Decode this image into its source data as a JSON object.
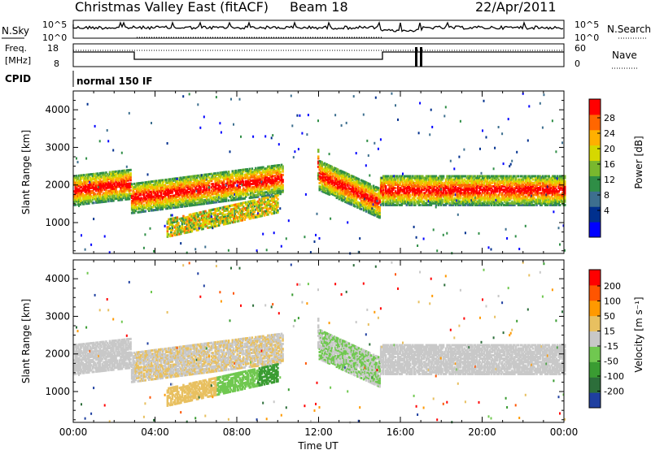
{
  "header": {
    "station": "Christmas Valley East (fitACF)",
    "beam": "Beam 18",
    "date": "22/Apr/2011"
  },
  "nsky_panel": {
    "left_label": "N.Sky",
    "left_ticks": [
      "10^5",
      "10^0"
    ],
    "right_label": "N.Search",
    "right_ticks": [
      "10^5",
      "10^0"
    ]
  },
  "freq_panel": {
    "label_line1": "Freq.",
    "label_line2": "[MHz]",
    "left_ticks": [
      "18",
      "8"
    ],
    "right_label": "Nave",
    "right_ticks": [
      "60",
      "0"
    ]
  },
  "cpid": {
    "label": "CPID",
    "mode": "normal 150 IF"
  },
  "chart_data": [
    {
      "type": "heatmap",
      "title": "",
      "xlabel": "",
      "ylabel": "Slant Range [km]",
      "xlim": [
        0,
        24
      ],
      "ylim": [
        180,
        4500
      ],
      "x_tick_labels": [
        "00:00",
        "04:00",
        "08:00",
        "12:00",
        "16:00",
        "20:00",
        "00:00"
      ],
      "y_ticks": [
        1000,
        2000,
        3000,
        4000
      ],
      "colorbar": {
        "label": "Power [dB]",
        "ticks": [
          "28",
          "24",
          "20",
          "16",
          "12",
          "8",
          "4"
        ],
        "colors": [
          "#0000ff",
          "#00308e",
          "#3d6f8f",
          "#2f8e46",
          "#79b82e",
          "#d6d800",
          "#ffb000",
          "#ff6600",
          "#ff0000"
        ]
      },
      "echo_bands": [
        {
          "name": "main",
          "t0": 0.0,
          "t1": 2.8,
          "r0": 1600,
          "r1": 2300,
          "level": "high"
        },
        {
          "name": "main",
          "t0": 3.0,
          "t1": 10.5,
          "r0": 1500,
          "r1": 2500,
          "level": "mid"
        },
        {
          "name": "lower",
          "t0": 4.5,
          "t1": 10.0,
          "r0": 800,
          "r1": 1600,
          "level": "mid"
        },
        {
          "name": "arc",
          "t0": 12.0,
          "t1": 15.0,
          "r0": 1300,
          "r1": 2400,
          "level": "high"
        },
        {
          "name": "main",
          "t0": 15.0,
          "t1": 24.0,
          "r0": 1650,
          "r1": 2250,
          "level": "high"
        }
      ]
    },
    {
      "type": "heatmap",
      "title": "",
      "xlabel": "Time UT",
      "ylabel": "Slant Range [km]",
      "xlim": [
        0,
        24
      ],
      "ylim": [
        180,
        4500
      ],
      "x_tick_labels": [
        "00:00",
        "04:00",
        "08:00",
        "12:00",
        "16:00",
        "20:00",
        "00:00"
      ],
      "y_ticks": [
        1000,
        2000,
        3000,
        4000
      ],
      "colorbar": {
        "label": "Velocity [m s⁻¹]",
        "ticks": [
          "200",
          "100",
          "50",
          "15",
          "-15",
          "-50",
          "-100",
          "-200"
        ],
        "colors": [
          "#1f3fa0",
          "#2c6e3a",
          "#3a9c32",
          "#70c850",
          "#c8c8c8",
          "#e8c060",
          "#ff9900",
          "#ff5500",
          "#ff0000"
        ]
      }
    }
  ]
}
